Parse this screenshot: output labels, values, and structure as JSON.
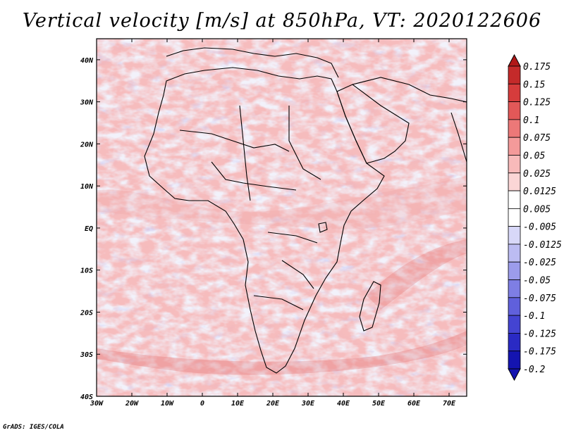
{
  "title": "Vertical velocity [m/s] at 850hPa, VT: 2020122606",
  "footer": "GrADS: IGES/COLA",
  "map": {
    "region": "Africa",
    "lon_range": [
      -30,
      75
    ],
    "lat_range": [
      -40,
      45
    ],
    "lat_ticks": [
      {
        "value": 40,
        "label": "40N"
      },
      {
        "value": 30,
        "label": "30N"
      },
      {
        "value": 20,
        "label": "20N"
      },
      {
        "value": 10,
        "label": "10N"
      },
      {
        "value": 0,
        "label": "EQ"
      },
      {
        "value": -10,
        "label": "10S"
      },
      {
        "value": -20,
        "label": "20S"
      },
      {
        "value": -30,
        "label": "30S"
      },
      {
        "value": -40,
        "label": "40S"
      }
    ],
    "lon_ticks": [
      {
        "value": -30,
        "label": "30W"
      },
      {
        "value": -20,
        "label": "20W"
      },
      {
        "value": -10,
        "label": "10W"
      },
      {
        "value": 0,
        "label": "0"
      },
      {
        "value": 10,
        "label": "10E"
      },
      {
        "value": 20,
        "label": "20E"
      },
      {
        "value": 30,
        "label": "30E"
      },
      {
        "value": 40,
        "label": "40E"
      },
      {
        "value": 50,
        "label": "50E"
      },
      {
        "value": 60,
        "label": "60E"
      },
      {
        "value": 70,
        "label": "70E"
      }
    ]
  },
  "colorbar": {
    "levels": [
      {
        "label": "0.175",
        "color": "#b01818"
      },
      {
        "label": "0.15",
        "color": "#c42a2a"
      },
      {
        "label": "0.125",
        "color": "#d63c3c"
      },
      {
        "label": "0.1",
        "color": "#e25858"
      },
      {
        "label": "0.075",
        "color": "#ec7878"
      },
      {
        "label": "0.05",
        "color": "#f49a9a"
      },
      {
        "label": "0.025",
        "color": "#f8baba"
      },
      {
        "label": "0.0125",
        "color": "#fbd6d6"
      },
      {
        "label": "0.005",
        "color": "#ffffff"
      },
      {
        "label": "-0.005",
        "color": "#ffffff"
      },
      {
        "label": "-0.0125",
        "color": "#d8d8f8"
      },
      {
        "label": "-0.025",
        "color": "#bcbcf2"
      },
      {
        "label": "-0.05",
        "color": "#9c9ceb"
      },
      {
        "label": "-0.075",
        "color": "#7e7ee4"
      },
      {
        "label": "-0.1",
        "color": "#6060dc"
      },
      {
        "label": "-0.125",
        "color": "#4444d2"
      },
      {
        "label": "-0.175",
        "color": "#2a2ac4"
      },
      {
        "label": "-0.2",
        "color": "#1414b0"
      }
    ],
    "top_color": "#b01818",
    "bottom_color": "#1414b0"
  }
}
